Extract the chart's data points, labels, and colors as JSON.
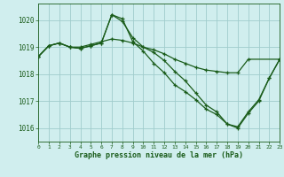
{
  "title": "Graphe pression niveau de la mer (hPa)",
  "background_color": "#d0eeee",
  "grid_color": "#a0cccc",
  "line_color": "#1a5c1a",
  "xlim": [
    0,
    23
  ],
  "ylim": [
    1015.5,
    1020.6
  ],
  "xticks": [
    0,
    1,
    2,
    3,
    4,
    5,
    6,
    7,
    8,
    9,
    10,
    11,
    12,
    13,
    14,
    15,
    16,
    17,
    18,
    19,
    20,
    21,
    22,
    23
  ],
  "yticks": [
    1016,
    1017,
    1018,
    1019,
    1020
  ],
  "series": [
    {
      "x": [
        0,
        1,
        2,
        3,
        4,
        5,
        6,
        7,
        8,
        9,
        10,
        11,
        12,
        13,
        14,
        15,
        16,
        17,
        18,
        19,
        20,
        21,
        22,
        23
      ],
      "y": [
        1018.65,
        1019.05,
        1019.15,
        1019.0,
        1018.95,
        1019.05,
        1019.15,
        1020.2,
        1019.95,
        1019.35,
        1019.0,
        1018.8,
        1018.5,
        1018.1,
        1017.75,
        1017.3,
        1016.85,
        1016.6,
        1016.15,
        1016.05,
        1016.6,
        1017.05,
        1017.85,
        1018.55
      ]
    },
    {
      "x": [
        0,
        1,
        2,
        3,
        4,
        5,
        6,
        7,
        8,
        9,
        10,
        11,
        12,
        13,
        14,
        15,
        16,
        17,
        18,
        19,
        20,
        21,
        22,
        23
      ],
      "y": [
        1018.65,
        1019.05,
        1019.15,
        1019.0,
        1018.95,
        1019.05,
        1019.15,
        1020.2,
        1020.05,
        1019.2,
        1018.85,
        1018.4,
        1018.05,
        1017.6,
        1017.35,
        1017.05,
        1016.7,
        1016.5,
        1016.15,
        1016.0,
        1016.55,
        1017.0,
        1017.85,
        1018.55
      ]
    },
    {
      "x": [
        0,
        1,
        2,
        3,
        4,
        5,
        6,
        7,
        8,
        9,
        10,
        11,
        12,
        13,
        14,
        15,
        16,
        17,
        18,
        19,
        20,
        23
      ],
      "y": [
        1018.65,
        1019.05,
        1019.15,
        1019.0,
        1019.0,
        1019.1,
        1019.2,
        1019.3,
        1019.25,
        1019.15,
        1019.0,
        1018.9,
        1018.75,
        1018.55,
        1018.4,
        1018.25,
        1018.15,
        1018.1,
        1018.05,
        1018.05,
        1018.55,
        1018.55
      ]
    }
  ]
}
